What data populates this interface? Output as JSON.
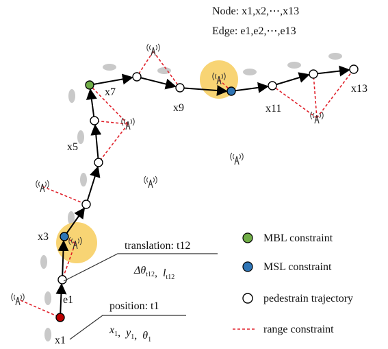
{
  "header": {
    "node_line": "Node: x1,x2,⋯,x13",
    "edge_line": "Edge: e1,e2,⋯,e13"
  },
  "node_labels": [
    "x1",
    "x3",
    "x5",
    "x7",
    "x9",
    "x11",
    "x13"
  ],
  "edge_label": "e1",
  "translation": {
    "title": "translation: t12",
    "separator": ",",
    "formula": [
      {
        "text": "Δθ",
        "sub": "t12"
      },
      {
        "text": "l",
        "sub": "t12"
      }
    ]
  },
  "position": {
    "title": "position: t1",
    "separator": ",",
    "formula": [
      {
        "text": "x",
        "sub": "1"
      },
      {
        "text": "y",
        "sub": "1"
      },
      {
        "text": "θ",
        "sub": "1"
      }
    ]
  },
  "legend": [
    "MBL constraint",
    "MSL constraint",
    "pedestrain trajectory",
    "range constraint"
  ]
}
